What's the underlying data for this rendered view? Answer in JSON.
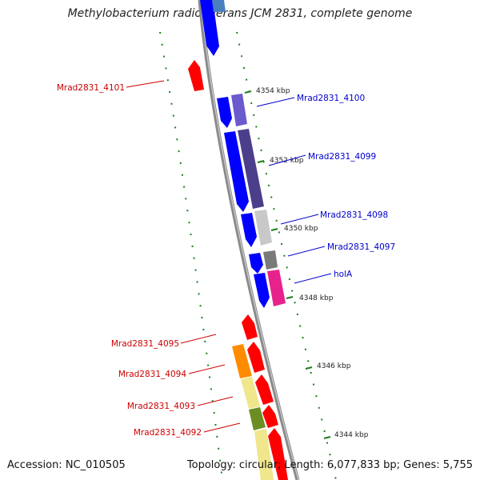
{
  "title": "Methylobacterium radiotolerans JCM 2831, complete genome",
  "accession": "Accession: NC_010505",
  "summary": "Topology: circular; Length: 6,077,833 bp; Genes: 5,755",
  "colors": {
    "backbone": "#8c8c8c",
    "tick": "#1e7d1e",
    "forward_label": "#0000cc",
    "reverse_label": "#cc0000"
  },
  "kbp_ticks": [
    {
      "label": "4354 kbp"
    },
    {
      "label": "4352 kbp"
    },
    {
      "label": "4350 kbp"
    },
    {
      "label": "4348 kbp"
    },
    {
      "label": "4346 kbp"
    },
    {
      "label": "4344 kbp"
    }
  ],
  "gene_labels": [
    {
      "name": "Mrad2831_4101",
      "strand": "reverse"
    },
    {
      "name": "Mrad2831_4100",
      "strand": "forward"
    },
    {
      "name": "Mrad2831_4099",
      "strand": "forward"
    },
    {
      "name": "Mrad2831_4098",
      "strand": "forward"
    },
    {
      "name": "Mrad2831_4097",
      "strand": "forward"
    },
    {
      "name": "holA",
      "strand": "forward"
    },
    {
      "name": "Mrad2831_4095",
      "strand": "reverse"
    },
    {
      "name": "Mrad2831_4094",
      "strand": "reverse"
    },
    {
      "name": "Mrad2831_4093",
      "strand": "reverse"
    },
    {
      "name": "Mrad2831_4092",
      "strand": "reverse"
    }
  ]
}
